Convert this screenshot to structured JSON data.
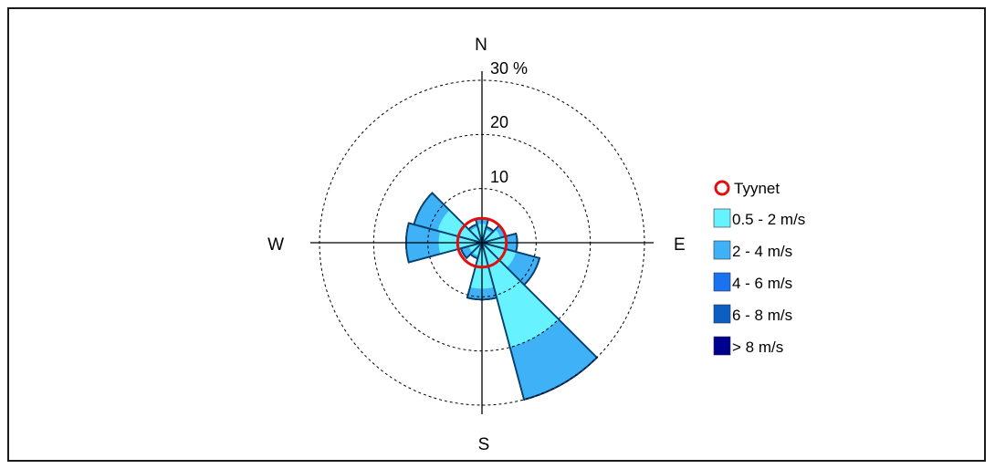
{
  "chart_data": {
    "type": "windrose",
    "compass_labels": {
      "n": "N",
      "e": "E",
      "s": "S",
      "w": "W"
    },
    "rings": [
      10,
      20,
      30
    ],
    "ring_labels": [
      "10",
      "20",
      "30 %"
    ],
    "max_percent": 30,
    "directions_deg": [
      0,
      30,
      60,
      90,
      120,
      150,
      180,
      210,
      240,
      270,
      300,
      330
    ],
    "calm": {
      "name": "Tyynet",
      "percent": 4.5,
      "color": "#e01010"
    },
    "series": [
      {
        "name": "0.5 - 2 m/s",
        "color": "#66f2ff",
        "cumulative": [
          3.5,
          2.5,
          3.5,
          4.5,
          6.5,
          20,
          8.5,
          2.5,
          2.5,
          8.0,
          8.5,
          3.0
        ]
      },
      {
        "name": "2 - 4 m/s",
        "color": "#3fb1f7",
        "cumulative": [
          4.5,
          3.0,
          4.5,
          6.5,
          11.0,
          30.0,
          10.5,
          3.0,
          4.0,
          14.0,
          13.0,
          3.5
        ]
      },
      {
        "name": "4 - 6 m/s",
        "color": "#1a72f0",
        "cumulative": [
          4.5,
          3.0,
          4.5,
          6.5,
          11.0,
          30.0,
          10.5,
          3.0,
          4.0,
          14.0,
          13.0,
          3.5
        ]
      },
      {
        "name": "6 - 8 m/s",
        "color": "#0b5ec2",
        "cumulative": [
          4.5,
          3.0,
          4.5,
          6.5,
          11.0,
          30.0,
          10.5,
          3.0,
          4.0,
          14.0,
          13.0,
          3.5
        ]
      },
      {
        "name": "> 8 m/s",
        "color": "#000090",
        "cumulative": [
          4.5,
          3.0,
          4.5,
          6.5,
          11.0,
          30.0,
          10.5,
          3.0,
          4.0,
          14.0,
          13.0,
          3.5
        ]
      }
    ],
    "legend_position": "right",
    "grid": true
  }
}
